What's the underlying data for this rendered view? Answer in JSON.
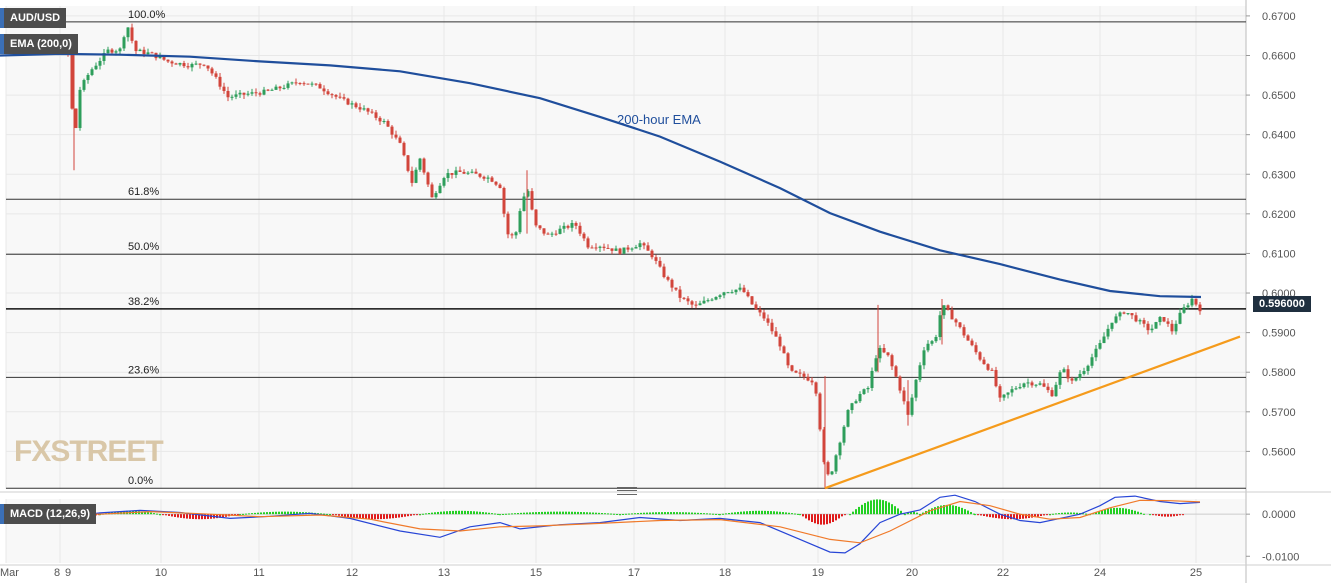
{
  "header": {
    "symbol": "AUD/USD",
    "ema_badge": "EMA (200,0)",
    "macd_badge": "MACD (12,26,9)",
    "price_tag": "0.596000",
    "watermark": "FXSTREET"
  },
  "colors": {
    "up": "#2e9e5b",
    "down": "#d2453b",
    "ema": "#1f4e9c",
    "trendline": "#f59b1c",
    "macd": "#2745d6",
    "signal": "#f07a2a",
    "hist_up": "#22d022",
    "hist_down": "#e01b1b"
  },
  "chart_data": [
    {
      "type": "candlestick",
      "annotations": {
        "ema_label": "200-hour EMA"
      },
      "ylim": [
        0.5505,
        0.6725
      ],
      "y_ticks": [
        "0.6700",
        "0.6600",
        "0.6500",
        "0.6400",
        "0.6300",
        "0.6200",
        "0.6100",
        "0.6000",
        "0.5900",
        "0.5800",
        "0.5700",
        "0.5600"
      ],
      "x_ticks": [
        "Mar",
        "8",
        "9",
        "10",
        "11",
        "12",
        "13",
        "15",
        "17",
        "18",
        "19",
        "20",
        "22",
        "24",
        "25"
      ],
      "fibonacci": [
        {
          "label": "100.0%",
          "value": 0.6685
        },
        {
          "label": "61.8%",
          "value": 0.6237
        },
        {
          "label": "50.0%",
          "value": 0.6098
        },
        {
          "label": "38.2%",
          "value": 0.596
        },
        {
          "label": "23.6%",
          "value": 0.5787
        },
        {
          "label": "0.0%",
          "value": 0.5507
        }
      ],
      "price_line": 0.596,
      "ema_points": [
        [
          0,
          0.66
        ],
        [
          60,
          0.6604
        ],
        [
          120,
          0.6602
        ],
        [
          190,
          0.6597
        ],
        [
          260,
          0.6585
        ],
        [
          330,
          0.6575
        ],
        [
          400,
          0.656
        ],
        [
          470,
          0.653
        ],
        [
          540,
          0.6492
        ],
        [
          600,
          0.6445
        ],
        [
          660,
          0.6395
        ],
        [
          720,
          0.6332
        ],
        [
          780,
          0.6265
        ],
        [
          830,
          0.6202
        ],
        [
          880,
          0.6155
        ],
        [
          940,
          0.6108
        ],
        [
          1000,
          0.6073
        ],
        [
          1060,
          0.6034
        ],
        [
          1110,
          0.6005
        ],
        [
          1160,
          0.5992
        ],
        [
          1201,
          0.599
        ]
      ],
      "trendline": [
        [
          825,
          0.5507
        ],
        [
          1240,
          0.589
        ]
      ],
      "anchors": [
        [
          2,
          0.6615
        ],
        [
          18,
          0.6635
        ],
        [
          40,
          0.6625
        ],
        [
          62,
          0.6622
        ],
        [
          70,
          0.6598
        ],
        [
          74,
          0.633
        ],
        [
          78,
          0.6505
        ],
        [
          90,
          0.656
        ],
        [
          108,
          0.6612
        ],
        [
          120,
          0.6615
        ],
        [
          127,
          0.668
        ],
        [
          135,
          0.6612
        ],
        [
          150,
          0.6605
        ],
        [
          168,
          0.6585
        ],
        [
          190,
          0.6575
        ],
        [
          205,
          0.658
        ],
        [
          215,
          0.6545
        ],
        [
          228,
          0.6495
        ],
        [
          245,
          0.6502
        ],
        [
          265,
          0.6508
        ],
        [
          285,
          0.6522
        ],
        [
          300,
          0.6535
        ],
        [
          320,
          0.652
        ],
        [
          340,
          0.649
        ],
        [
          365,
          0.6462
        ],
        [
          385,
          0.643
        ],
        [
          400,
          0.6375
        ],
        [
          412,
          0.628
        ],
        [
          420,
          0.634
        ],
        [
          432,
          0.624
        ],
        [
          445,
          0.63
        ],
        [
          460,
          0.6305
        ],
        [
          475,
          0.63
        ],
        [
          490,
          0.629
        ],
        [
          500,
          0.627
        ],
        [
          507,
          0.615
        ],
        [
          515,
          0.614
        ],
        [
          520,
          0.621
        ],
        [
          527,
          0.627
        ],
        [
          535,
          0.617
        ],
        [
          548,
          0.6145
        ],
        [
          560,
          0.616
        ],
        [
          575,
          0.6175
        ],
        [
          588,
          0.612
        ],
        [
          600,
          0.612
        ],
        [
          620,
          0.6105
        ],
        [
          640,
          0.6125
        ],
        [
          652,
          0.6095
        ],
        [
          665,
          0.604
        ],
        [
          680,
          0.599
        ],
        [
          695,
          0.5965
        ],
        [
          710,
          0.5985
        ],
        [
          725,
          0.6005
        ],
        [
          742,
          0.601
        ],
        [
          755,
          0.596
        ],
        [
          765,
          0.5935
        ],
        [
          780,
          0.587
        ],
        [
          790,
          0.58
        ],
        [
          803,
          0.579
        ],
        [
          815,
          0.5775
        ],
        [
          825,
          0.5545
        ],
        [
          830,
          0.5535
        ],
        [
          838,
          0.561
        ],
        [
          848,
          0.57
        ],
        [
          858,
          0.574
        ],
        [
          868,
          0.576
        ],
        [
          878,
          0.586
        ],
        [
          888,
          0.584
        ],
        [
          898,
          0.5775
        ],
        [
          908,
          0.569
        ],
        [
          915,
          0.577
        ],
        [
          925,
          0.587
        ],
        [
          935,
          0.588
        ],
        [
          942,
          0.597
        ],
        [
          955,
          0.593
        ],
        [
          968,
          0.588
        ],
        [
          980,
          0.5835
        ],
        [
          992,
          0.58
        ],
        [
          1000,
          0.573
        ],
        [
          1012,
          0.5755
        ],
        [
          1025,
          0.5775
        ],
        [
          1040,
          0.577
        ],
        [
          1052,
          0.5745
        ],
        [
          1062,
          0.581
        ],
        [
          1072,
          0.5775
        ],
        [
          1085,
          0.581
        ],
        [
          1100,
          0.587
        ],
        [
          1112,
          0.593
        ],
        [
          1125,
          0.5955
        ],
        [
          1138,
          0.593
        ],
        [
          1150,
          0.5905
        ],
        [
          1162,
          0.594
        ],
        [
          1172,
          0.5905
        ],
        [
          1182,
          0.5955
        ],
        [
          1192,
          0.5985
        ],
        [
          1200,
          0.596
        ]
      ]
    },
    {
      "type": "macd",
      "ylim": [
        -0.0116,
        0.0036
      ],
      "y_ticks": [
        "0.0000",
        "-0.0100"
      ],
      "macd_points": [
        [
          0,
          0.0008
        ],
        [
          40,
          0.0005
        ],
        [
          70,
          -0.0006
        ],
        [
          100,
          0.0003
        ],
        [
          140,
          0.0009
        ],
        [
          180,
          0.0004
        ],
        [
          230,
          -0.001
        ],
        [
          270,
          -0.0005
        ],
        [
          310,
          0.0002
        ],
        [
          350,
          -0.001
        ],
        [
          400,
          -0.004
        ],
        [
          440,
          -0.0055
        ],
        [
          470,
          -0.003
        ],
        [
          500,
          -0.002
        ],
        [
          520,
          -0.0035
        ],
        [
          560,
          -0.0025
        ],
        [
          600,
          -0.002
        ],
        [
          640,
          -0.0008
        ],
        [
          680,
          -0.0015
        ],
        [
          720,
          -0.001
        ],
        [
          760,
          -0.002
        ],
        [
          800,
          -0.006
        ],
        [
          830,
          -0.009
        ],
        [
          845,
          -0.0092
        ],
        [
          860,
          -0.007
        ],
        [
          880,
          -0.002
        ],
        [
          900,
          0.0
        ],
        [
          920,
          0.001
        ],
        [
          940,
          0.004
        ],
        [
          955,
          0.0045
        ],
        [
          975,
          0.003
        ],
        [
          1000,
          0.0
        ],
        [
          1020,
          -0.0015
        ],
        [
          1040,
          -0.002
        ],
        [
          1060,
          -0.001
        ],
        [
          1080,
          0.0
        ],
        [
          1100,
          0.002
        ],
        [
          1115,
          0.004
        ],
        [
          1135,
          0.0043
        ],
        [
          1160,
          0.003
        ],
        [
          1180,
          0.0025
        ],
        [
          1200,
          0.0028
        ]
      ],
      "signal_points": [
        [
          0,
          0.0005
        ],
        [
          50,
          0.0003
        ],
        [
          100,
          0.0
        ],
        [
          150,
          0.0006
        ],
        [
          200,
          0.0001
        ],
        [
          260,
          -0.0006
        ],
        [
          320,
          -0.0002
        ],
        [
          370,
          -0.0012
        ],
        [
          420,
          -0.0035
        ],
        [
          460,
          -0.004
        ],
        [
          500,
          -0.003
        ],
        [
          540,
          -0.0028
        ],
        [
          600,
          -0.0022
        ],
        [
          660,
          -0.0015
        ],
        [
          720,
          -0.0013
        ],
        [
          780,
          -0.003
        ],
        [
          830,
          -0.006
        ],
        [
          860,
          -0.0068
        ],
        [
          890,
          -0.004
        ],
        [
          930,
          0.0008
        ],
        [
          960,
          0.003
        ],
        [
          990,
          0.002
        ],
        [
          1020,
          0.0
        ],
        [
          1050,
          -0.0012
        ],
        [
          1080,
          -0.0008
        ],
        [
          1110,
          0.0015
        ],
        [
          1140,
          0.0033
        ],
        [
          1170,
          0.0032
        ],
        [
          1200,
          0.0029
        ]
      ],
      "hist_ranges": [
        [
          5,
          70,
          0.0007
        ],
        [
          75,
          100,
          -0.0006
        ],
        [
          100,
          160,
          0.0008
        ],
        [
          160,
          240,
          -0.0012
        ],
        [
          240,
          330,
          0.0006
        ],
        [
          330,
          420,
          -0.0012
        ],
        [
          420,
          500,
          0.0008
        ],
        [
          500,
          620,
          0.0006
        ],
        [
          620,
          720,
          0.0005
        ],
        [
          720,
          800,
          0.0008
        ],
        [
          800,
          845,
          -0.0025
        ],
        [
          850,
          905,
          0.0035
        ],
        [
          905,
          920,
          0.0006
        ],
        [
          920,
          975,
          0.0022
        ],
        [
          975,
          1050,
          -0.0012
        ],
        [
          1050,
          1090,
          0.0004
        ],
        [
          1090,
          1145,
          0.0015
        ],
        [
          1150,
          1185,
          -0.0006
        ]
      ]
    }
  ]
}
